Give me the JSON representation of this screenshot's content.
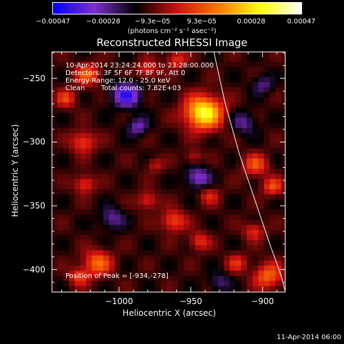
{
  "chart_data": {
    "type": "heatmap",
    "title": "Reconstructed RHESSI Image",
    "xlabel": "Heliocentric X (arcsec)",
    "ylabel": "Heliocentric Y (arcsec)",
    "xlim": [
      -1047,
      -884
    ],
    "ylim": [
      -418,
      -229
    ],
    "xticks": [
      -1000,
      -950,
      -900
    ],
    "yticks": [
      -250,
      -300,
      -350,
      -400
    ],
    "xtick_labels": [
      "−1000",
      "−950",
      "−900"
    ],
    "ytick_labels": [
      "−250",
      "−300",
      "−350",
      "−400"
    ],
    "colorbar": {
      "range": [
        -0.00047,
        0.00047
      ],
      "tick_values": [
        -0.00047,
        -0.00028,
        -9.3e-05,
        9.3e-05,
        0.00028,
        0.00047
      ],
      "tick_labels": [
        "−0.00047",
        "−0.00028",
        "−9.3e−05",
        "9.3e−05",
        "0.00028",
        "0.00047"
      ],
      "units": "(photons cm⁻² s⁻¹ asec⁻²)",
      "colormap": [
        "#0000ff",
        "#7f2fcf",
        "#000000",
        "#d01010",
        "#ff7700",
        "#ffff00",
        "#ffffff"
      ]
    },
    "annotations": {
      "time_range": "10-Apr-2014 23:24:24.000 to 23:28:00.000",
      "detectors": "Detectors: 3F 5F 6F 7F 8F 9F, Att 0",
      "energy_range": "Energy Range: 12.0 - 25.0 keV",
      "algorithm": "Clean",
      "total_counts": "Total counts: 7.82E+03",
      "peak": "Position of Peak = [-934,-278]"
    },
    "peak": {
      "x": -934,
      "y": -278
    },
    "sources": [
      {
        "x": -941,
        "y": -277,
        "sigma": 9,
        "amp": 0.00047
      },
      {
        "x": -1022,
        "y": -247,
        "sigma": 6,
        "amp": 0.00022
      },
      {
        "x": -1037,
        "y": -266,
        "sigma": 5,
        "amp": 0.00018
      },
      {
        "x": -1025,
        "y": -300,
        "sigma": 6,
        "amp": 0.0002
      },
      {
        "x": -1024,
        "y": -333,
        "sigma": 5,
        "amp": 0.00018
      },
      {
        "x": -1015,
        "y": -395,
        "sigma": 7,
        "amp": 0.00025
      },
      {
        "x": -1028,
        "y": -406,
        "sigma": 5,
        "amp": 0.00017
      },
      {
        "x": -980,
        "y": -243,
        "sigma": 5,
        "amp": 0.00016
      },
      {
        "x": -960,
        "y": -235,
        "sigma": 5,
        "amp": 0.00017
      },
      {
        "x": -962,
        "y": -362,
        "sigma": 6,
        "amp": 0.00021
      },
      {
        "x": -944,
        "y": -378,
        "sigma": 5,
        "amp": 0.00017
      },
      {
        "x": -975,
        "y": -318,
        "sigma": 4,
        "amp": 0.00012
      },
      {
        "x": -980,
        "y": -346,
        "sigma": 5,
        "amp": 0.00016
      },
      {
        "x": -937,
        "y": -342,
        "sigma": 5,
        "amp": 0.00014
      },
      {
        "x": -948,
        "y": -312,
        "sigma": 4,
        "amp": 0.00012
      },
      {
        "x": -905,
        "y": -318,
        "sigma": 6,
        "amp": 0.00021
      },
      {
        "x": -893,
        "y": -335,
        "sigma": 5,
        "amp": 0.0002
      },
      {
        "x": -906,
        "y": -370,
        "sigma": 5,
        "amp": 0.00016
      },
      {
        "x": -896,
        "y": -405,
        "sigma": 7,
        "amp": 0.00024
      },
      {
        "x": -918,
        "y": -395,
        "sigma": 5,
        "amp": 0.00015
      },
      {
        "x": -995,
        "y": -263,
        "sigma": 7,
        "amp": -0.00028
      },
      {
        "x": -987,
        "y": -288,
        "sigma": 5,
        "amp": -0.00018
      },
      {
        "x": -945,
        "y": -328,
        "sigma": 6,
        "amp": -0.00022
      },
      {
        "x": -1005,
        "y": -360,
        "sigma": 6,
        "amp": -0.00016
      },
      {
        "x": -913,
        "y": -285,
        "sigma": 6,
        "amp": -0.00015
      },
      {
        "x": -900,
        "y": -255,
        "sigma": 5,
        "amp": -0.00014
      },
      {
        "x": -930,
        "y": -410,
        "sigma": 5,
        "amp": -0.00013
      }
    ],
    "limb_curve": [
      [
        -934,
        -229
      ],
      [
        -926,
        -270
      ],
      [
        -916,
        -310
      ],
      [
        -904,
        -350
      ],
      [
        -895,
        -380
      ],
      [
        -887,
        -405
      ],
      [
        -884,
        -418
      ]
    ],
    "footer": "11-Apr-2014 06:00"
  }
}
